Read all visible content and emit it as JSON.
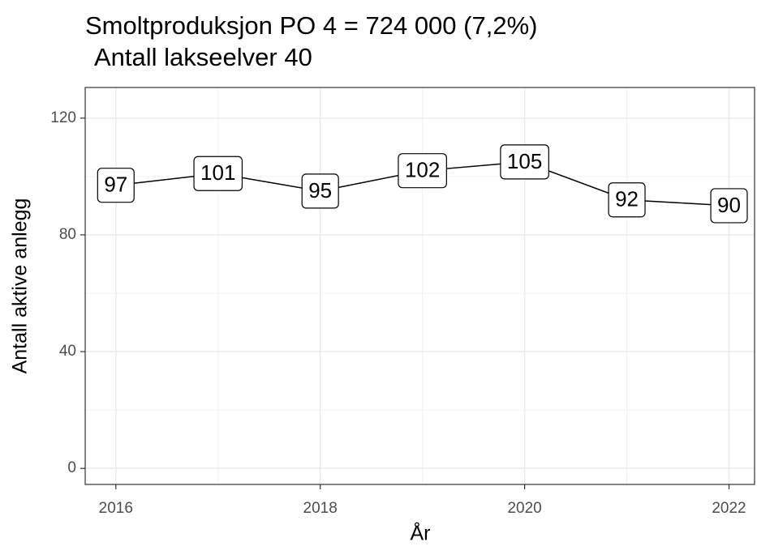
{
  "chart_data": {
    "type": "line",
    "title": "Smoltproduksjon PO 4 = 724 000 (7,2%)",
    "subtitle": "Antall lakseelver 40",
    "x_label": "År",
    "y_label": "Antall aktive anlegg",
    "x": [
      2016,
      2017,
      2018,
      2019,
      2020,
      2021,
      2022
    ],
    "series": [
      {
        "name": "Antall aktive anlegg",
        "color": "#000000",
        "values": [
          97,
          101,
          95,
          102,
          105,
          92,
          90
        ]
      }
    ],
    "xlim": [
      2015.7,
      2022.25
    ],
    "ylim": [
      -5.5,
      130.5
    ],
    "xticks": [
      2016,
      2018,
      2020,
      2022
    ],
    "yticks": [
      0,
      40,
      80,
      120
    ],
    "x_minor_ticks": [
      2017,
      2019,
      2021
    ],
    "y_minor_ticks": [
      20,
      60,
      100
    ],
    "grid": true
  }
}
